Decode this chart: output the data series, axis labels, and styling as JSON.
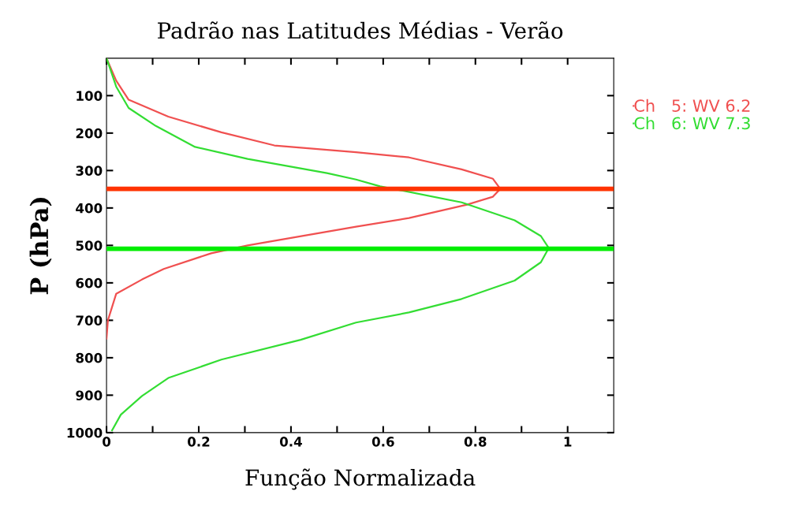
{
  "chart_data": {
    "type": "line",
    "title": "Padrão nas Latitudes Médias - Verão",
    "xlabel": "Função Normalizada",
    "ylabel": "P (hPa)",
    "series": [
      {
        "name": "Ch   5: WV 6.2",
        "color": "#f05050",
        "x": [
          0,
          0.021,
          0.048,
          0.134,
          0.249,
          0.364,
          0.541,
          0.656,
          0.77,
          0.838,
          0.854,
          0.838,
          0.782,
          0.656,
          0.541,
          0.306,
          0.227,
          0.124,
          0.077,
          0.021,
          0.003,
          0
        ],
        "values": [
          0,
          60,
          111,
          156,
          198,
          233,
          251,
          265,
          297,
          322,
          349,
          370,
          391,
          427,
          450,
          500,
          521,
          563,
          591,
          629,
          700,
          749
        ]
      },
      {
        "name": "Ch   6: WV 7.3",
        "color": "#33dd33",
        "x": [
          0,
          0.021,
          0.048,
          0.107,
          0.192,
          0.306,
          0.478,
          0.541,
          0.593,
          0.77,
          0.885,
          0.942,
          0.959,
          0.942,
          0.885,
          0.77,
          0.656,
          0.541,
          0.421,
          0.249,
          0.134,
          0.077,
          0.031,
          0.012
        ],
        "values": [
          0,
          76,
          133,
          181,
          237,
          269,
          307,
          324,
          342,
          385,
          433,
          475,
          507,
          545,
          594,
          643,
          679,
          706,
          752,
          805,
          854,
          902,
          952,
          994
        ]
      }
    ],
    "ref_lines": [
      {
        "axis": "y",
        "value": 349,
        "color": "#ff3300"
      },
      {
        "axis": "y",
        "value": 509,
        "color": "#00ee00"
      }
    ],
    "xlim": [
      0,
      1.1
    ],
    "ylim": [
      1000,
      0
    ],
    "xticks": [
      0,
      {
        "value": 0.1,
        "label": null
      },
      0.2,
      {
        "value": 0.3,
        "label": null
      },
      0.4,
      {
        "value": 0.5,
        "label": null
      },
      0.6,
      {
        "value": 0.7,
        "label": null
      },
      0.8,
      {
        "value": 0.9,
        "label": null
      },
      1
    ],
    "yticks": [
      100,
      200,
      300,
      400,
      500,
      600,
      700,
      800,
      900,
      1000
    ],
    "grid": false,
    "legend": "right",
    "marker": "none",
    "line_style": "solid"
  }
}
